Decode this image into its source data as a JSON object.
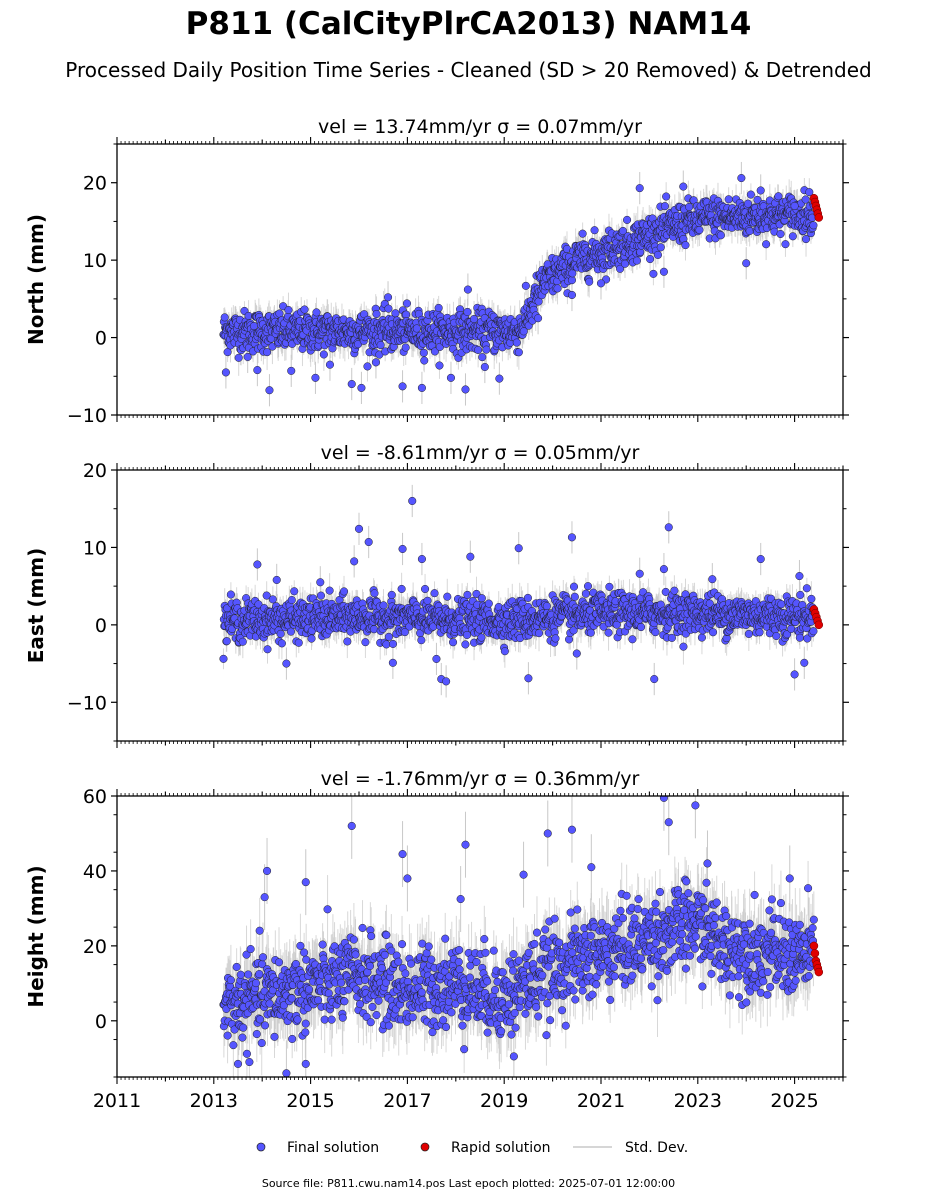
{
  "title": "P811 (CalCityPlrCA2013) NAM14",
  "subtitle": "Processed Daily Position Time Series - Cleaned (SD > 20 Removed) & Detrended",
  "footer": "Source file: P811.cwu.nam14.pos  Last epoch plotted: 2025-07-01 12:00:00",
  "legend": {
    "final": "Final solution",
    "rapid": "Rapid solution",
    "stddev": "Std. Dev."
  },
  "colors": {
    "final": "#5555ff",
    "rapid": "#e00000",
    "stddev": "#c8c8c8",
    "outline": "#222222"
  },
  "chart_data": [
    {
      "type": "scatter",
      "ylabel": "North (mm)",
      "annotation": "vel = 13.74mm/yr   σ = 0.07mm/yr",
      "xlim": [
        2011,
        2026
      ],
      "ylim": [
        -10,
        25
      ],
      "yticks": [
        -10,
        0,
        10,
        20
      ],
      "xticks": [
        "2011",
        "2013",
        "2015",
        "2017",
        "2019",
        "2021",
        "2023",
        "2025"
      ],
      "trend": [
        [
          2013.2,
          0.8
        ],
        [
          2019.3,
          0.8
        ],
        [
          2019.5,
          3
        ],
        [
          2019.8,
          7
        ],
        [
          2020.5,
          10
        ],
        [
          2021.5,
          12
        ],
        [
          2022.5,
          14.5
        ],
        [
          2023.2,
          15.5
        ],
        [
          2025.5,
          16
        ]
      ],
      "series": [
        {
          "name": "Final solution",
          "x_range": [
            2013.2,
            2025.4
          ],
          "scatter_sd": 1.3
        },
        {
          "name": "Rapid solution",
          "x_range": [
            2025.4,
            2025.5
          ],
          "values": [
            18,
            17.5,
            17,
            16.5,
            16,
            15.5
          ]
        }
      ],
      "outliers": [
        [
          2013.25,
          -4.5
        ],
        [
          2013.7,
          -2.5
        ],
        [
          2013.9,
          -4.2
        ],
        [
          2014.15,
          -6.8
        ],
        [
          2014.6,
          -4.3
        ],
        [
          2015.1,
          -5.2
        ],
        [
          2015.4,
          -3.5
        ],
        [
          2015.85,
          -6.0
        ],
        [
          2016.05,
          -6.5
        ],
        [
          2016.35,
          -3.2
        ],
        [
          2016.6,
          5.2
        ],
        [
          2016.9,
          -6.3
        ],
        [
          2017.3,
          -6.5
        ],
        [
          2017.9,
          -5.2
        ],
        [
          2018.2,
          -6.7
        ],
        [
          2018.25,
          6.2
        ],
        [
          2018.6,
          -3.8
        ],
        [
          2018.9,
          -5.3
        ],
        [
          2019.7,
          2.5
        ],
        [
          2020.4,
          5.5
        ],
        [
          2021.0,
          7.0
        ],
        [
          2021.8,
          19.3
        ],
        [
          2022.3,
          8.5
        ],
        [
          2022.7,
          19.5
        ],
        [
          2023.9,
          20.6
        ],
        [
          2024.0,
          9.6
        ],
        [
          2024.3,
          19.0
        ],
        [
          2025.0,
          17.0
        ]
      ]
    },
    {
      "type": "scatter",
      "ylabel": "East (mm)",
      "annotation": "vel = -8.61mm/yr   σ = 0.05mm/yr",
      "xlim": [
        2011,
        2026
      ],
      "ylim": [
        -15,
        20
      ],
      "yticks": [
        -10,
        0,
        10,
        20
      ],
      "xticks": [
        "2011",
        "2013",
        "2015",
        "2017",
        "2019",
        "2021",
        "2023",
        "2025"
      ],
      "trend": [
        [
          2013.2,
          0.5
        ],
        [
          2016,
          1.0
        ],
        [
          2019,
          0.5
        ],
        [
          2021,
          1.5
        ],
        [
          2023,
          1.5
        ],
        [
          2025.5,
          1.0
        ]
      ],
      "series": [
        {
          "name": "Final solution",
          "x_range": [
            2013.2,
            2025.4
          ],
          "scatter_sd": 1.3
        },
        {
          "name": "Rapid solution",
          "x_range": [
            2025.4,
            2025.5
          ],
          "values": [
            2,
            1.5,
            1,
            0.5,
            0
          ]
        }
      ],
      "outliers": [
        [
          2013.9,
          7.8
        ],
        [
          2014.3,
          5.8
        ],
        [
          2014.5,
          -5.0
        ],
        [
          2015.2,
          5.5
        ],
        [
          2015.9,
          8.2
        ],
        [
          2016.0,
          12.4
        ],
        [
          2016.2,
          10.7
        ],
        [
          2016.7,
          -4.9
        ],
        [
          2016.9,
          9.8
        ],
        [
          2017.1,
          16.0
        ],
        [
          2017.3,
          8.5
        ],
        [
          2017.6,
          -4.4
        ],
        [
          2017.7,
          -7.0
        ],
        [
          2017.8,
          -7.3
        ],
        [
          2018.3,
          8.8
        ],
        [
          2019.3,
          9.9
        ],
        [
          2019.5,
          -6.9
        ],
        [
          2020.4,
          11.3
        ],
        [
          2020.5,
          -3.7
        ],
        [
          2021.8,
          6.6
        ],
        [
          2022.1,
          -7.0
        ],
        [
          2022.3,
          7.2
        ],
        [
          2022.4,
          12.6
        ],
        [
          2023.3,
          5.9
        ],
        [
          2024.3,
          8.5
        ],
        [
          2025.0,
          -6.4
        ],
        [
          2025.2,
          -4.9
        ],
        [
          2025.1,
          6.3
        ]
      ]
    },
    {
      "type": "scatter",
      "ylabel": "Height (mm)",
      "annotation": "vel = -1.76mm/yr   σ = 0.36mm/yr",
      "xlim": [
        2011,
        2026
      ],
      "ylim": [
        -15,
        60
      ],
      "yticks": [
        0,
        20,
        40,
        60
      ],
      "xticks": [
        "2011",
        "2013",
        "2015",
        "2017",
        "2019",
        "2021",
        "2023",
        "2025"
      ],
      "trend": [
        [
          2013.2,
          4
        ],
        [
          2014,
          6
        ],
        [
          2015,
          9
        ],
        [
          2016,
          12
        ],
        [
          2017,
          8
        ],
        [
          2018,
          10
        ],
        [
          2019,
          6
        ],
        [
          2019.7,
          12
        ],
        [
          2020.5,
          16
        ],
        [
          2021.5,
          20
        ],
        [
          2022.5,
          24
        ],
        [
          2023,
          26
        ],
        [
          2023.5,
          20
        ],
        [
          2024.5,
          18
        ],
        [
          2025.5,
          17
        ]
      ],
      "series": [
        {
          "name": "Final solution",
          "x_range": [
            2013.2,
            2025.4
          ],
          "scatter_sd": 5.5
        },
        {
          "name": "Rapid solution",
          "x_range": [
            2025.4,
            2025.5
          ],
          "values": [
            20,
            18,
            16,
            15,
            14,
            13
          ]
        }
      ],
      "outliers": [
        [
          2013.5,
          -11.5
        ],
        [
          2014.1,
          40
        ],
        [
          2014.05,
          33
        ],
        [
          2014.5,
          -14
        ],
        [
          2014.9,
          37
        ],
        [
          2014.9,
          -11.5
        ],
        [
          2015.85,
          52
        ],
        [
          2016.9,
          44.5
        ],
        [
          2017.0,
          38
        ],
        [
          2018.2,
          47
        ],
        [
          2018.1,
          32.5
        ],
        [
          2019.2,
          -9.5
        ],
        [
          2019.4,
          39
        ],
        [
          2019.9,
          50
        ],
        [
          2020.4,
          51
        ],
        [
          2020.8,
          41
        ],
        [
          2022.3,
          59.5
        ],
        [
          2022.4,
          53
        ],
        [
          2022.95,
          57.5
        ],
        [
          2023.2,
          42
        ],
        [
          2024.9,
          38
        ]
      ]
    }
  ]
}
